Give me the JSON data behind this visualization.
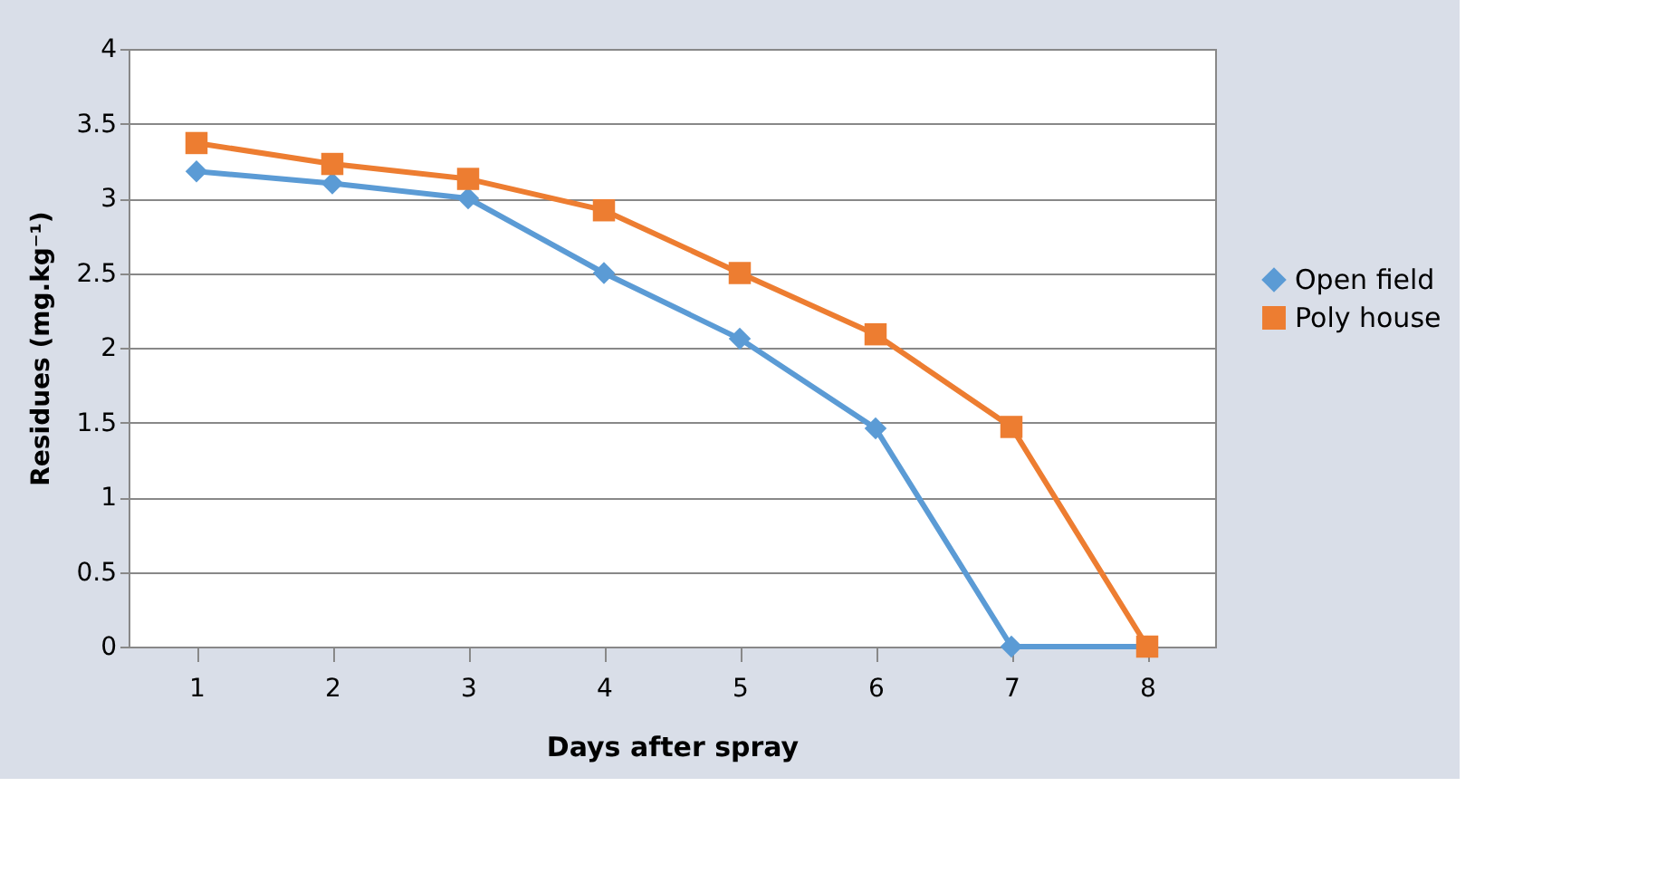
{
  "chart_data": {
    "type": "line",
    "xlabel": "Days after spray",
    "ylabel": "Residues (mg.kg⁻¹)",
    "categories": [
      "1",
      "2",
      "3",
      "4",
      "5",
      "6",
      "7",
      "8"
    ],
    "series": [
      {
        "name": "Open field",
        "color": "#5b9bd5",
        "marker": "diamond",
        "values": [
          3.18,
          3.1,
          3.0,
          2.5,
          2.06,
          1.46,
          0,
          0
        ]
      },
      {
        "name": "Poly house",
        "color": "#ed7d31",
        "marker": "square",
        "values": [
          3.37,
          3.23,
          3.13,
          2.92,
          2.5,
          2.09,
          1.47,
          0
        ]
      }
    ],
    "ylim": [
      0,
      4
    ],
    "yticks": [
      0,
      0.5,
      1,
      1.5,
      2,
      2.5,
      3,
      3.5,
      4
    ],
    "grid": "y",
    "legend": "right"
  }
}
